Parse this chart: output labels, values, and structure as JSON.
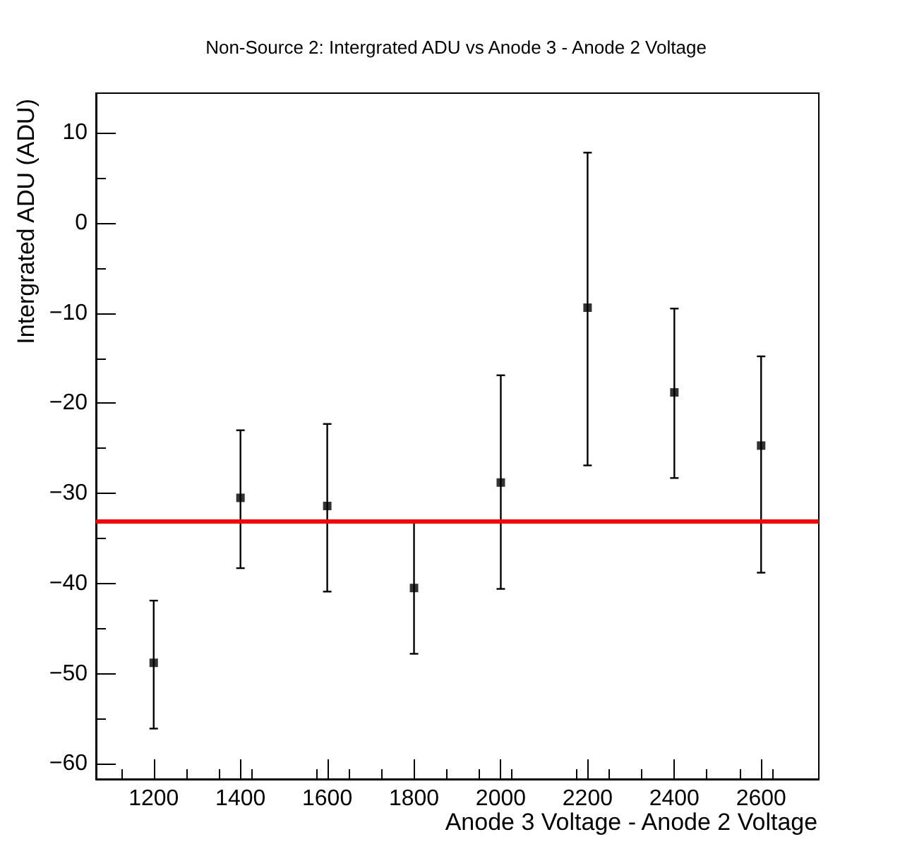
{
  "chart_data": {
    "type": "scatter",
    "title": "Non-Source 2: Intergrated ADU vs Anode 3 - Anode 2 Voltage",
    "xlabel": "Anode 3 Voltage - Anode 2 Voltage",
    "ylabel": "Intergrated ADU (ADU)",
    "x": [
      1200,
      1400,
      1600,
      1800,
      2000,
      2200,
      2400,
      2600
    ],
    "series": [
      {
        "color": "#000000",
        "values": [
          -48.8,
          -30.5,
          -31.4,
          -40.5,
          -28.8,
          -9.4,
          -18.8,
          -24.7
        ],
        "errors": [
          [
            -56.1,
            -41.9
          ],
          [
            -38.3,
            -23.0
          ],
          [
            -40.9,
            -22.3
          ],
          [
            -47.8,
            -33.1
          ],
          [
            -40.6,
            -16.9
          ],
          [
            -26.9,
            7.8
          ],
          [
            -28.3,
            -9.5
          ],
          [
            -38.8,
            -14.8
          ]
        ]
      }
    ],
    "marker": "square",
    "grid": false,
    "xlim": [
      1067,
      2733
    ],
    "xticks": [
      1200,
      1400,
      1600,
      1800,
      2000,
      2200,
      2400,
      2600
    ],
    "ylim": [
      -61.7,
      14.4
    ],
    "yticks": [
      -60,
      -50,
      -40,
      -30,
      -20,
      -10,
      0,
      10
    ],
    "ref_lines": [
      {
        "axis": "y",
        "value": -33.1,
        "color": "#ff0000"
      }
    ]
  }
}
